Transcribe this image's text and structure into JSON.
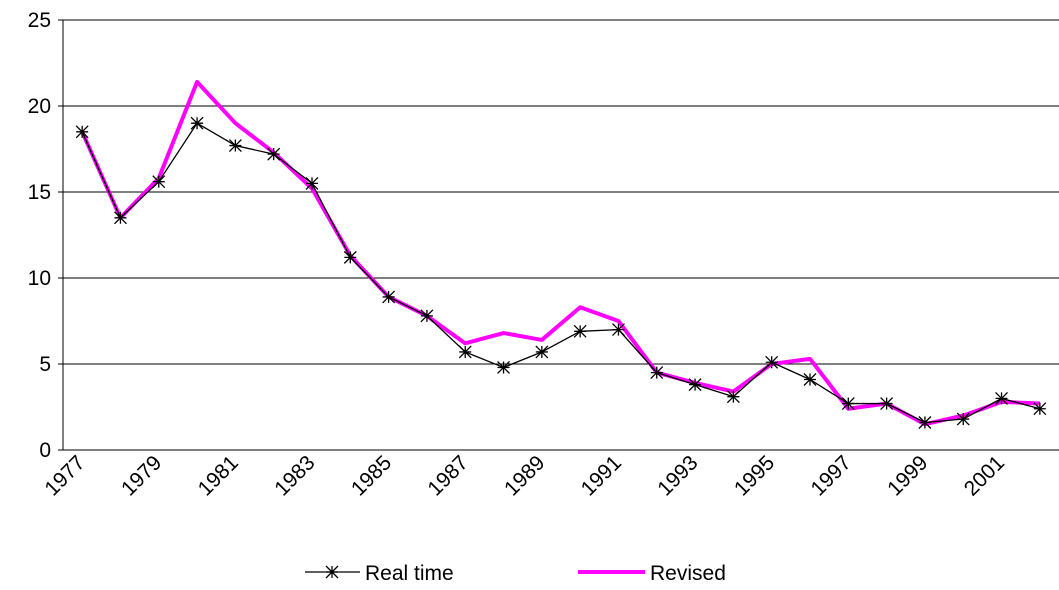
{
  "chart_data": {
    "type": "line",
    "categories": [
      "1977",
      null,
      "1979",
      null,
      "1981",
      null,
      "1983",
      null,
      "1985",
      null,
      "1987",
      null,
      "1989",
      null,
      "1991",
      null,
      "1993",
      null,
      "1995",
      null,
      "1997",
      null,
      "1999",
      null,
      "2001",
      null
    ],
    "series": [
      {
        "name": "Real time",
        "color": "#000000",
        "marker": "star",
        "values": [
          18.5,
          13.5,
          15.6,
          19.0,
          17.7,
          17.2,
          15.5,
          11.2,
          8.9,
          7.8,
          5.7,
          4.8,
          5.7,
          6.9,
          7.0,
          4.5,
          3.8,
          3.1,
          5.1,
          4.1,
          2.7,
          2.7,
          1.6,
          1.8,
          3.0,
          2.4
        ]
      },
      {
        "name": "Revised",
        "color": "#ff00ff",
        "values": [
          18.5,
          13.5,
          15.8,
          21.4,
          19.0,
          17.3,
          15.2,
          11.3,
          8.9,
          7.8,
          6.2,
          6.8,
          6.4,
          8.3,
          7.5,
          4.5,
          3.9,
          3.4,
          5.0,
          5.3,
          2.4,
          2.7,
          1.5,
          2.0,
          2.8,
          2.7
        ]
      }
    ],
    "ylim": [
      0,
      25
    ],
    "yticks": [
      0,
      5,
      10,
      15,
      20,
      25
    ],
    "grid": true,
    "legend": "bottom"
  }
}
